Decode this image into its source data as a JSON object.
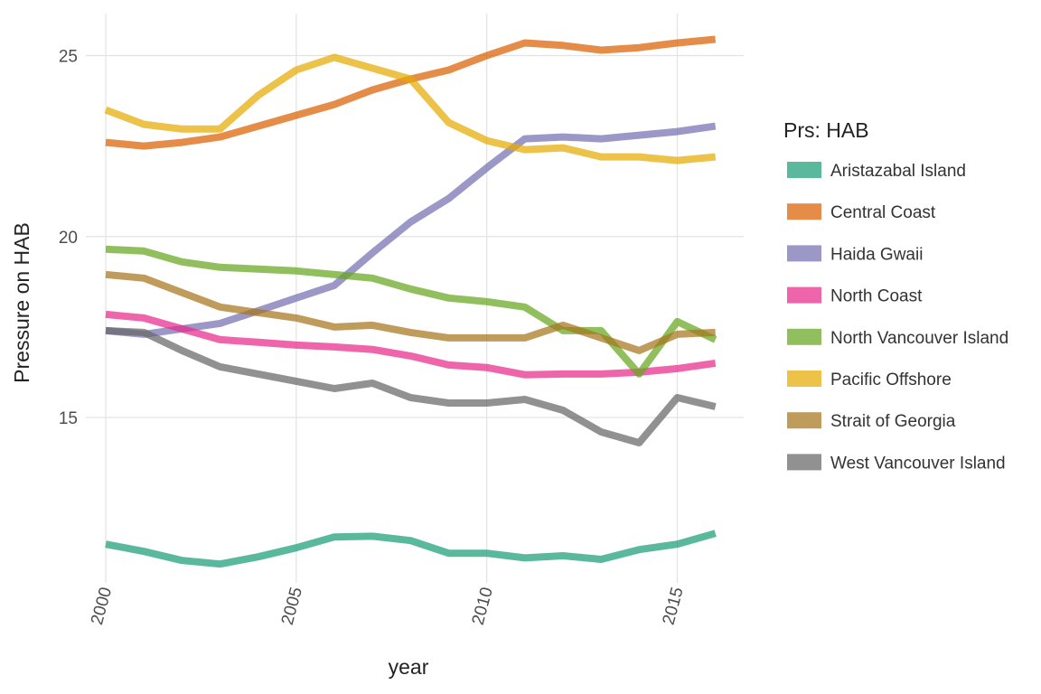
{
  "chart_data": {
    "type": "line",
    "title": "",
    "xlabel": "year",
    "ylabel": "Pressure on HAB",
    "x_ticks": [
      2000,
      2005,
      2010,
      2015
    ],
    "y_ticks": [
      15,
      20,
      25
    ],
    "xlim": [
      2000,
      2016
    ],
    "ylim": [
      11,
      26
    ],
    "grid": true,
    "legend": {
      "title": "Prs: HAB",
      "position": "right"
    },
    "x": [
      2000,
      2001,
      2002,
      2003,
      2004,
      2005,
      2006,
      2007,
      2008,
      2009,
      2010,
      2011,
      2012,
      2013,
      2014,
      2015,
      2016
    ],
    "series": [
      {
        "name": "Aristazabal Island",
        "color": "#1b9e77",
        "values": [
          11.5,
          11.3,
          11.05,
          10.95,
          11.15,
          11.4,
          11.7,
          11.72,
          11.6,
          11.25,
          11.25,
          11.12,
          11.18,
          11.08,
          11.35,
          11.5,
          11.8
        ]
      },
      {
        "name": "Central Coast",
        "color": "#d95f02",
        "values": [
          22.6,
          22.5,
          22.6,
          22.75,
          23.05,
          23.35,
          23.65,
          24.05,
          24.35,
          24.6,
          25.0,
          25.35,
          25.28,
          25.15,
          25.22,
          25.35,
          25.45
        ]
      },
      {
        "name": "Haida Gwaii",
        "color": "#7570b3",
        "values": [
          17.4,
          17.3,
          17.45,
          17.6,
          17.95,
          18.3,
          18.65,
          19.55,
          20.4,
          21.05,
          21.9,
          22.7,
          22.75,
          22.7,
          22.8,
          22.9,
          23.05
        ]
      },
      {
        "name": "North Coast",
        "color": "#e7298a",
        "values": [
          17.85,
          17.75,
          17.45,
          17.15,
          17.08,
          17.0,
          16.95,
          16.88,
          16.7,
          16.45,
          16.38,
          16.18,
          16.2,
          16.2,
          16.25,
          16.35,
          16.5
        ]
      },
      {
        "name": "North Vancouver Island",
        "color": "#66a61e",
        "values": [
          19.65,
          19.6,
          19.3,
          19.15,
          19.1,
          19.05,
          18.95,
          18.85,
          18.55,
          18.3,
          18.2,
          18.05,
          17.4,
          17.4,
          16.2,
          17.65,
          17.15
        ]
      },
      {
        "name": "Pacific Offshore",
        "color": "#e6ab02",
        "values": [
          23.5,
          23.1,
          22.97,
          22.97,
          23.9,
          24.6,
          24.95,
          24.65,
          24.35,
          23.15,
          22.65,
          22.4,
          22.45,
          22.2,
          22.2,
          22.1,
          22.2
        ]
      },
      {
        "name": "Strait of Georgia",
        "color": "#a6761d",
        "values": [
          18.95,
          18.85,
          18.45,
          18.05,
          17.9,
          17.75,
          17.5,
          17.55,
          17.35,
          17.2,
          17.2,
          17.2,
          17.55,
          17.2,
          16.85,
          17.3,
          17.35
        ]
      },
      {
        "name": "West Vancouver Island",
        "color": "#666666",
        "values": [
          17.4,
          17.35,
          16.85,
          16.4,
          16.2,
          16.0,
          15.8,
          15.95,
          15.55,
          15.4,
          15.4,
          15.5,
          15.2,
          14.6,
          14.3,
          15.55,
          15.3
        ]
      }
    ]
  }
}
